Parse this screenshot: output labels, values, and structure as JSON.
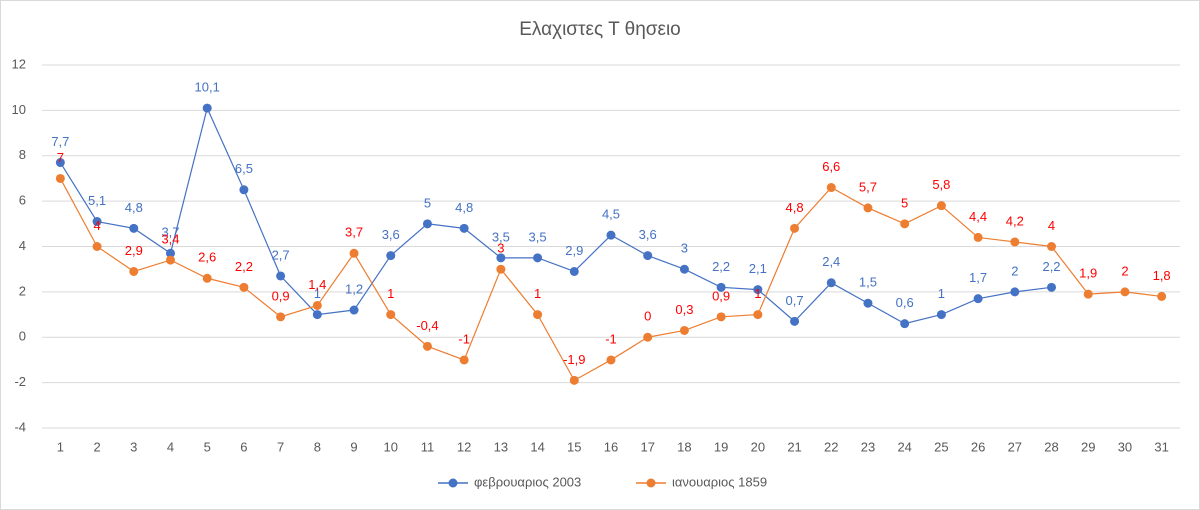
{
  "chart_data": {
    "type": "line",
    "title": "Ελαχιστες Τ θησειο",
    "categories": [
      "1",
      "2",
      "3",
      "4",
      "5",
      "6",
      "7",
      "8",
      "9",
      "10",
      "11",
      "12",
      "13",
      "14",
      "15",
      "16",
      "17",
      "18",
      "19",
      "20",
      "21",
      "22",
      "23",
      "24",
      "25",
      "26",
      "27",
      "28",
      "29",
      "30",
      "31"
    ],
    "series": [
      {
        "name": "φεβρουαριος 2003",
        "color": "#4472c4",
        "label_color": "#4472c4",
        "values": [
          7.7,
          5.1,
          4.8,
          3.7,
          10.1,
          6.5,
          2.7,
          1,
          1.2,
          3.6,
          5,
          4.8,
          3.5,
          3.5,
          2.9,
          4.5,
          3.6,
          3,
          2.2,
          2.1,
          0.7,
          2.4,
          1.5,
          0.6,
          1,
          1.7,
          2,
          2.2,
          null,
          null,
          null
        ],
        "value_labels": [
          "7,7",
          "5,1",
          "4,8",
          "3,7",
          "10,1",
          "6,5",
          "2,7",
          "1",
          "1,2",
          "3,6",
          "5",
          "4,8",
          "3,5",
          "3,5",
          "2,9",
          "4,5",
          "3,6",
          "3",
          "2,2",
          "2,1",
          "0,7",
          "2,4",
          "1,5",
          "0,6",
          "1",
          "1,7",
          "2",
          "2,2",
          null,
          null,
          null
        ]
      },
      {
        "name": "ιανουαριος 1859",
        "color": "#ed7d31",
        "label_color": "#ff0000",
        "values": [
          7,
          4,
          2.9,
          3.4,
          2.6,
          2.2,
          0.9,
          1.4,
          3.7,
          1,
          -0.4,
          -1,
          3,
          1,
          -1.9,
          -1,
          0,
          0.3,
          0.9,
          1,
          4.8,
          6.6,
          5.7,
          5,
          5.8,
          4.4,
          4.2,
          4,
          1.9,
          2,
          1.8
        ],
        "value_labels": [
          "7",
          "4",
          "2,9",
          "3,4",
          "2,6",
          "2,2",
          "0,9",
          "1,4",
          "3,7",
          "1",
          "-0,4",
          "-1",
          "3",
          "1",
          "-1,9",
          "-1",
          "0",
          "0,3",
          "0,9",
          "1",
          "4,8",
          "6,6",
          "5,7",
          "5",
          "5,8",
          "4,4",
          "4,2",
          "4",
          "1,9",
          "2",
          "1,8"
        ]
      }
    ],
    "ylim": [
      -4,
      12
    ],
    "yticks": [
      -4,
      -2,
      0,
      2,
      4,
      6,
      8,
      10,
      12
    ],
    "grid": true,
    "legend": "bottom"
  }
}
